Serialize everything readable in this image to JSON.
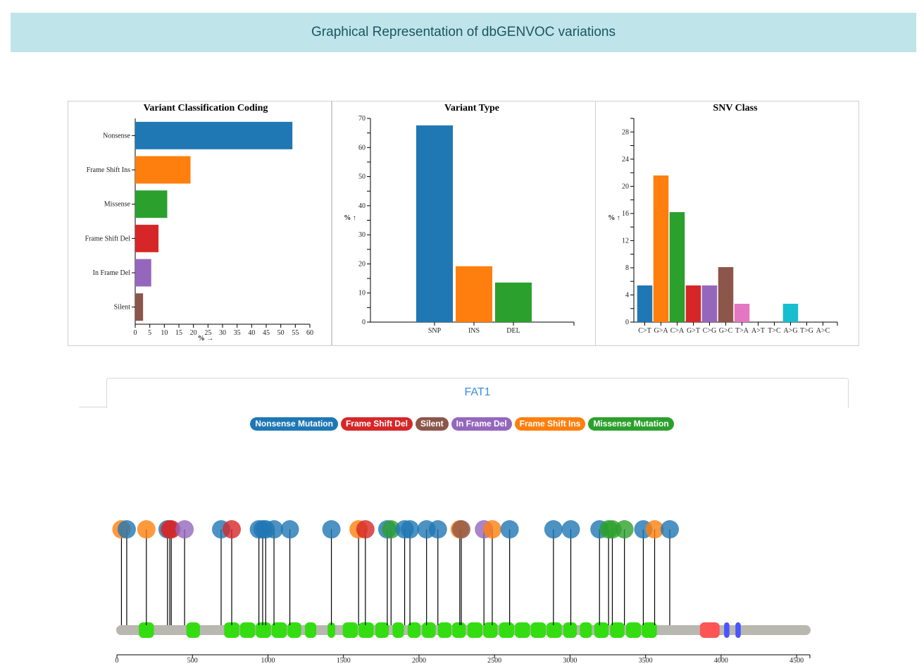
{
  "header": {
    "title": "Graphical Representation of dbGENVOC variations"
  },
  "colors": {
    "header_bg": "#bfe4ea",
    "blue": "#1f77b4",
    "orange": "#ff7f0e",
    "green": "#2ca02c",
    "red": "#d62728",
    "purple": "#9467bd",
    "brown": "#8c564b",
    "pink": "#e377c2",
    "cyan": "#17becf",
    "domain": "#33dd11",
    "backbone": "#b8b8b0",
    "domain_red": "#ff5555",
    "domain_blue": "#4a55ff"
  },
  "chart_data": [
    {
      "type": "bar",
      "orientation": "horizontal",
      "title": "Variant Classification Coding",
      "xlabel": "% →",
      "ylabel": "",
      "xlim": [
        0,
        60
      ],
      "xticks": [
        "0",
        "5",
        "10",
        "15",
        "20",
        "25",
        "30",
        "35",
        "40",
        "45",
        "50",
        "55",
        "60"
      ],
      "categories": [
        "Nonsense",
        "Frame Shift Ins",
        "Missense",
        "Frame Shift Del",
        "In Frame Del",
        "Silent"
      ],
      "values": [
        54,
        19,
        11,
        8,
        5.5,
        2.7
      ],
      "colors": [
        "#1f77b4",
        "#ff7f0e",
        "#2ca02c",
        "#d62728",
        "#9467bd",
        "#8c564b"
      ]
    },
    {
      "type": "bar",
      "title": "Variant Type",
      "xlabel": "",
      "ylabel": "% ↑",
      "ylim": [
        0,
        70
      ],
      "yticks": [
        "0",
        "10",
        "20",
        "30",
        "40",
        "50",
        "60",
        "70"
      ],
      "categories": [
        "SNP",
        "INS",
        "DEL"
      ],
      "values": [
        67.6,
        19.2,
        13.6
      ],
      "colors": [
        "#1f77b4",
        "#ff7f0e",
        "#2ca02c"
      ]
    },
    {
      "type": "bar",
      "title": "SNV Class",
      "xlabel": "",
      "ylabel": "% ↑",
      "ylim": [
        0,
        30
      ],
      "yticks": [
        "0",
        "4",
        "8",
        "12",
        "16",
        "20",
        "24",
        "28"
      ],
      "categories": [
        "C>T",
        "G>A",
        "C>A",
        "G>T",
        "C>G",
        "G>C",
        "T>A",
        "A>T",
        "T>C",
        "A>G",
        "T>G",
        "A>C"
      ],
      "values": [
        5.4,
        21.6,
        16.2,
        5.4,
        5.4,
        8.1,
        2.7,
        0,
        0,
        2.7,
        0,
        0
      ],
      "colors": [
        "#1f77b4",
        "#ff7f0e",
        "#2ca02c",
        "#d62728",
        "#9467bd",
        "#8c564b",
        "#e377c2",
        "#7f7f7f",
        "#bcbd22",
        "#17becf",
        "#1f77b4",
        "#ff7f0e"
      ]
    },
    {
      "type": "lollipop",
      "gene": "FAT1",
      "xlim": [
        0,
        4588
      ],
      "xticks": [
        "0",
        "500",
        "1000",
        "1500",
        "2000",
        "2500",
        "3000",
        "3500",
        "4000",
        "4500"
      ],
      "legend": [
        {
          "label": "Nonsense Mutation",
          "color": "#1f77b4"
        },
        {
          "label": "Frame Shift Del",
          "color": "#d62728"
        },
        {
          "label": "Silent",
          "color": "#8c564b"
        },
        {
          "label": "In Frame Del",
          "color": "#9467bd"
        },
        {
          "label": "Frame Shift Ins",
          "color": "#ff7f0e"
        },
        {
          "label": "Missense Mutation",
          "color": "#2ca02c"
        }
      ],
      "mutations": [
        {
          "pos": 30,
          "type": "Frame Shift Ins"
        },
        {
          "pos": 65,
          "type": "Nonsense Mutation"
        },
        {
          "pos": 195,
          "type": "Frame Shift Ins"
        },
        {
          "pos": 335,
          "type": "Nonsense Mutation"
        },
        {
          "pos": 350,
          "type": "Frame Shift Del"
        },
        {
          "pos": 360,
          "type": "Frame Shift Del"
        },
        {
          "pos": 448,
          "type": "In Frame Del"
        },
        {
          "pos": 690,
          "type": "Nonsense Mutation"
        },
        {
          "pos": 760,
          "type": "Frame Shift Del"
        },
        {
          "pos": 940,
          "type": "Nonsense Mutation"
        },
        {
          "pos": 965,
          "type": "Nonsense Mutation"
        },
        {
          "pos": 985,
          "type": "Nonsense Mutation"
        },
        {
          "pos": 1040,
          "type": "Nonsense Mutation"
        },
        {
          "pos": 1145,
          "type": "Nonsense Mutation"
        },
        {
          "pos": 1420,
          "type": "Nonsense Mutation"
        },
        {
          "pos": 1600,
          "type": "Frame Shift Ins"
        },
        {
          "pos": 1645,
          "type": "Frame Shift Del"
        },
        {
          "pos": 1790,
          "type": "Nonsense Mutation"
        },
        {
          "pos": 1815,
          "type": "Missense Mutation"
        },
        {
          "pos": 1905,
          "type": "Nonsense Mutation"
        },
        {
          "pos": 1940,
          "type": "Nonsense Mutation"
        },
        {
          "pos": 2050,
          "type": "Nonsense Mutation"
        },
        {
          "pos": 2125,
          "type": "Nonsense Mutation"
        },
        {
          "pos": 2270,
          "type": "Frame Shift Ins"
        },
        {
          "pos": 2280,
          "type": "Silent"
        },
        {
          "pos": 2430,
          "type": "In Frame Del"
        },
        {
          "pos": 2485,
          "type": "Frame Shift Ins"
        },
        {
          "pos": 2600,
          "type": "Nonsense Mutation"
        },
        {
          "pos": 2890,
          "type": "Nonsense Mutation"
        },
        {
          "pos": 3005,
          "type": "Nonsense Mutation"
        },
        {
          "pos": 3195,
          "type": "Nonsense Mutation"
        },
        {
          "pos": 3255,
          "type": "Missense Mutation"
        },
        {
          "pos": 3280,
          "type": "Missense Mutation"
        },
        {
          "pos": 3360,
          "type": "Missense Mutation"
        },
        {
          "pos": 3485,
          "type": "Nonsense Mutation"
        },
        {
          "pos": 3560,
          "type": "Frame Shift Ins"
        },
        {
          "pos": 3660,
          "type": "Nonsense Mutation"
        }
      ],
      "domains": [
        {
          "start": 145,
          "end": 245,
          "color": "#33dd11"
        },
        {
          "start": 460,
          "end": 550,
          "color": "#33dd11"
        },
        {
          "start": 710,
          "end": 810,
          "color": "#33dd11"
        },
        {
          "start": 815,
          "end": 915,
          "color": "#33dd11"
        },
        {
          "start": 920,
          "end": 1020,
          "color": "#33dd11"
        },
        {
          "start": 1025,
          "end": 1125,
          "color": "#33dd11"
        },
        {
          "start": 1130,
          "end": 1220,
          "color": "#33dd11"
        },
        {
          "start": 1245,
          "end": 1320,
          "color": "#33dd11"
        },
        {
          "start": 1395,
          "end": 1445,
          "color": "#33dd11"
        },
        {
          "start": 1495,
          "end": 1595,
          "color": "#33dd11"
        },
        {
          "start": 1600,
          "end": 1700,
          "color": "#33dd11"
        },
        {
          "start": 1710,
          "end": 1800,
          "color": "#33dd11"
        },
        {
          "start": 1825,
          "end": 1900,
          "color": "#33dd11"
        },
        {
          "start": 1925,
          "end": 2010,
          "color": "#33dd11"
        },
        {
          "start": 2020,
          "end": 2110,
          "color": "#33dd11"
        },
        {
          "start": 2125,
          "end": 2215,
          "color": "#33dd11"
        },
        {
          "start": 2220,
          "end": 2310,
          "color": "#33dd11"
        },
        {
          "start": 2320,
          "end": 2420,
          "color": "#33dd11"
        },
        {
          "start": 2425,
          "end": 2520,
          "color": "#33dd11"
        },
        {
          "start": 2530,
          "end": 2630,
          "color": "#33dd11"
        },
        {
          "start": 2635,
          "end": 2735,
          "color": "#33dd11"
        },
        {
          "start": 2740,
          "end": 2840,
          "color": "#33dd11"
        },
        {
          "start": 2845,
          "end": 2945,
          "color": "#33dd11"
        },
        {
          "start": 2955,
          "end": 3045,
          "color": "#33dd11"
        },
        {
          "start": 3065,
          "end": 3145,
          "color": "#33dd11"
        },
        {
          "start": 3160,
          "end": 3255,
          "color": "#33dd11"
        },
        {
          "start": 3265,
          "end": 3360,
          "color": "#33dd11"
        },
        {
          "start": 3370,
          "end": 3470,
          "color": "#33dd11"
        },
        {
          "start": 3475,
          "end": 3575,
          "color": "#33dd11"
        },
        {
          "start": 3860,
          "end": 3990,
          "color": "#ff5555"
        },
        {
          "start": 4020,
          "end": 4055,
          "color": "#4a55ff"
        },
        {
          "start": 4095,
          "end": 4130,
          "color": "#4a55ff"
        }
      ]
    }
  ]
}
